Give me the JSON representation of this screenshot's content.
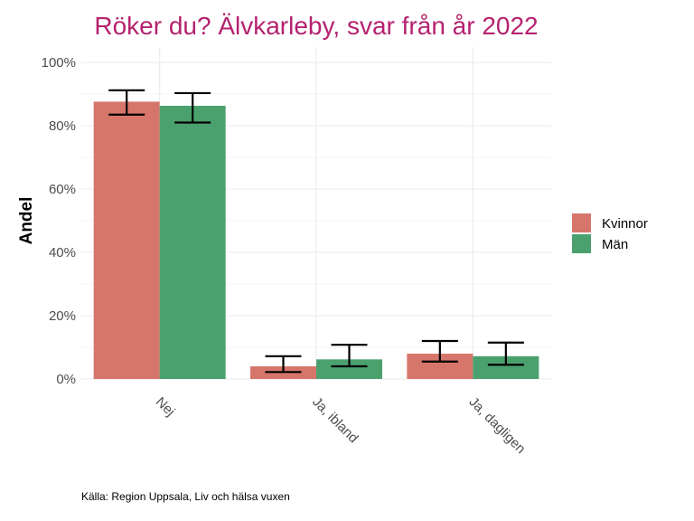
{
  "chart_data": {
    "type": "bar",
    "title": "Röker du? Älvkarleby, svar från år 2022",
    "xlabel": "",
    "ylabel": "Andel",
    "ylim": [
      0,
      1.05
    ],
    "yticks": [
      0,
      0.2,
      0.4,
      0.6,
      0.8,
      1.0
    ],
    "ytick_labels": [
      "0%",
      "20%",
      "40%",
      "60%",
      "80%",
      "100%"
    ],
    "categories": [
      "Nej",
      "Ja, ibland",
      "Ja, dagligen"
    ],
    "series": [
      {
        "name": "Kvinnor",
        "color": "#D6766A",
        "values": [
          0.876,
          0.04,
          0.08
        ],
        "ci_low": [
          0.835,
          0.022,
          0.055
        ],
        "ci_high": [
          0.912,
          0.072,
          0.12
        ]
      },
      {
        "name": "Män",
        "color": "#4BA16E",
        "values": [
          0.863,
          0.062,
          0.072
        ],
        "ci_low": [
          0.81,
          0.04,
          0.045
        ],
        "ci_high": [
          0.903,
          0.108,
          0.115
        ]
      }
    ],
    "legend_position": "right",
    "grid": true,
    "caption": "Källa: Region Uppsala, Liv och hälsa vuxen",
    "title_color": "#B5226E"
  }
}
